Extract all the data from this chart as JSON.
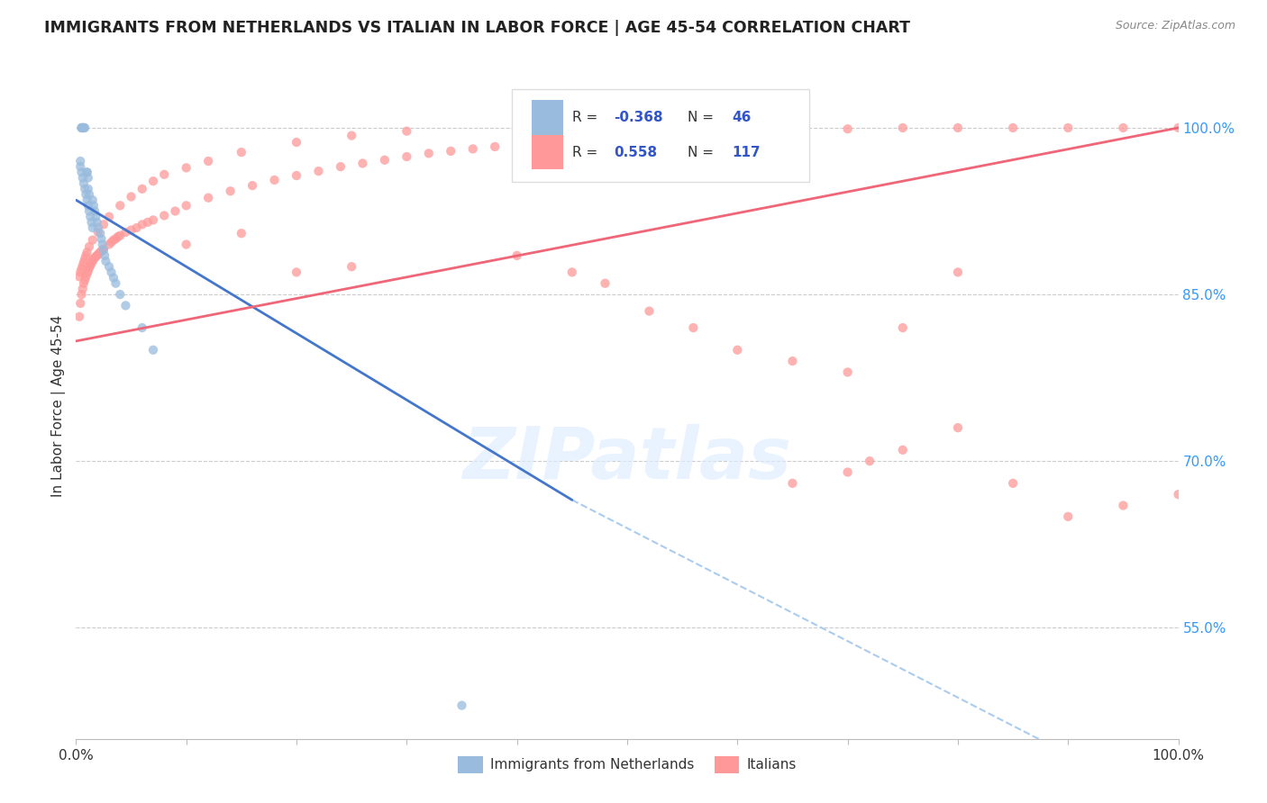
{
  "title": "IMMIGRANTS FROM NETHERLANDS VS ITALIAN IN LABOR FORCE | AGE 45-54 CORRELATION CHART",
  "source": "Source: ZipAtlas.com",
  "ylabel": "In Labor Force | Age 45-54",
  "xlim": [
    0.0,
    1.0
  ],
  "ylim": [
    0.45,
    1.05
  ],
  "ytick_labels_right": [
    "100.0%",
    "85.0%",
    "70.0%",
    "55.0%"
  ],
  "ytick_positions_right": [
    1.0,
    0.85,
    0.7,
    0.55
  ],
  "watermark": "ZIPatlas",
  "color_blue": "#99BBDD",
  "color_pink": "#FF9999",
  "color_blue_line": "#4477CC",
  "color_pink_line": "#EE6677",
  "color_dashed_line": "#AACCEE",
  "dot_size": 55,
  "netherlands_x": [
    0.005,
    0.005,
    0.006,
    0.006,
    0.007,
    0.007,
    0.008,
    0.01,
    0.01,
    0.011,
    0.011,
    0.012,
    0.015,
    0.016,
    0.017,
    0.018,
    0.019,
    0.02,
    0.022,
    0.023,
    0.024,
    0.025,
    0.026,
    0.027,
    0.03,
    0.032,
    0.034,
    0.036,
    0.04,
    0.045,
    0.06,
    0.07,
    0.004,
    0.004,
    0.005,
    0.006,
    0.007,
    0.008,
    0.009,
    0.01,
    0.011,
    0.012,
    0.013,
    0.014,
    0.015,
    0.35
  ],
  "netherlands_y": [
    1.0,
    1.0,
    1.0,
    1.0,
    1.0,
    1.0,
    1.0,
    0.96,
    0.96,
    0.955,
    0.945,
    0.94,
    0.935,
    0.93,
    0.925,
    0.92,
    0.915,
    0.91,
    0.905,
    0.9,
    0.895,
    0.89,
    0.885,
    0.88,
    0.875,
    0.87,
    0.865,
    0.86,
    0.85,
    0.84,
    0.82,
    0.8,
    0.97,
    0.965,
    0.96,
    0.955,
    0.95,
    0.945,
    0.94,
    0.935,
    0.93,
    0.925,
    0.92,
    0.915,
    0.91,
    0.48
  ],
  "italians_x": [
    0.003,
    0.004,
    0.005,
    0.006,
    0.007,
    0.008,
    0.009,
    0.01,
    0.011,
    0.012,
    0.013,
    0.014,
    0.015,
    0.016,
    0.017,
    0.018,
    0.019,
    0.02,
    0.021,
    0.022,
    0.023,
    0.024,
    0.025,
    0.03,
    0.032,
    0.034,
    0.036,
    0.038,
    0.04,
    0.045,
    0.05,
    0.055,
    0.06,
    0.065,
    0.07,
    0.08,
    0.09,
    0.1,
    0.12,
    0.14,
    0.16,
    0.18,
    0.2,
    0.22,
    0.24,
    0.26,
    0.28,
    0.3,
    0.32,
    0.34,
    0.36,
    0.38,
    0.4,
    0.42,
    0.44,
    0.46,
    0.48,
    0.5,
    0.55,
    0.6,
    0.65,
    0.7,
    0.75,
    0.8,
    0.85,
    0.9,
    0.95,
    1.0,
    0.003,
    0.004,
    0.005,
    0.006,
    0.007,
    0.008,
    0.009,
    0.01,
    0.012,
    0.015,
    0.02,
    0.025,
    0.03,
    0.04,
    0.05,
    0.06,
    0.07,
    0.08,
    0.1,
    0.12,
    0.15,
    0.2,
    0.25,
    0.3,
    0.1,
    0.15,
    0.2,
    0.25,
    0.4,
    0.45,
    0.48,
    0.52,
    0.56,
    0.6,
    0.65,
    0.7,
    0.75,
    0.8,
    0.65,
    0.7,
    0.72,
    0.75,
    0.8,
    0.85,
    0.9,
    0.95,
    1.0
  ],
  "italians_y": [
    0.83,
    0.842,
    0.85,
    0.855,
    0.86,
    0.863,
    0.866,
    0.869,
    0.871,
    0.874,
    0.876,
    0.878,
    0.88,
    0.882,
    0.883,
    0.884,
    0.885,
    0.886,
    0.887,
    0.888,
    0.889,
    0.89,
    0.891,
    0.895,
    0.897,
    0.899,
    0.9,
    0.902,
    0.903,
    0.906,
    0.908,
    0.91,
    0.913,
    0.915,
    0.917,
    0.921,
    0.925,
    0.93,
    0.937,
    0.943,
    0.948,
    0.953,
    0.957,
    0.961,
    0.965,
    0.968,
    0.971,
    0.974,
    0.977,
    0.979,
    0.981,
    0.983,
    0.985,
    0.987,
    0.989,
    0.991,
    0.993,
    0.994,
    0.996,
    0.997,
    0.998,
    0.999,
    1.0,
    1.0,
    1.0,
    1.0,
    1.0,
    1.0,
    0.866,
    0.87,
    0.873,
    0.876,
    0.879,
    0.882,
    0.885,
    0.888,
    0.893,
    0.899,
    0.906,
    0.913,
    0.92,
    0.93,
    0.938,
    0.945,
    0.952,
    0.958,
    0.964,
    0.97,
    0.978,
    0.987,
    0.993,
    0.997,
    0.895,
    0.905,
    0.87,
    0.875,
    0.885,
    0.87,
    0.86,
    0.835,
    0.82,
    0.8,
    0.79,
    0.78,
    0.82,
    0.87,
    0.68,
    0.69,
    0.7,
    0.71,
    0.73,
    0.68,
    0.65,
    0.66,
    0.67
  ],
  "blue_line_x": [
    0.0,
    0.45
  ],
  "blue_line_y": [
    0.935,
    0.665
  ],
  "dashed_line_x": [
    0.45,
    1.05
  ],
  "dashed_line_y": [
    0.665,
    0.36
  ],
  "pink_line_x": [
    0.0,
    1.0
  ],
  "pink_line_y": [
    0.808,
    1.0
  ]
}
